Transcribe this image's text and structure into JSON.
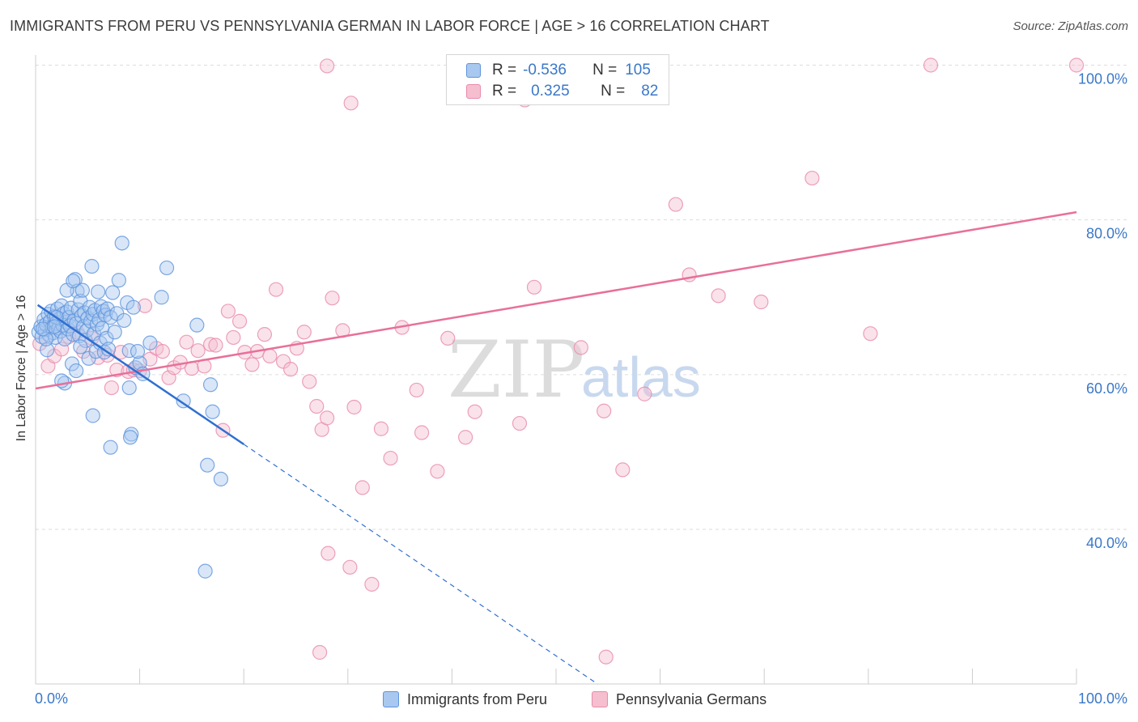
{
  "title": "IMMIGRANTS FROM PERU VS PENNSYLVANIA GERMAN IN LABOR FORCE | AGE > 16 CORRELATION CHART",
  "source": "Source: ZipAtlas.com",
  "watermark": {
    "zip": "ZIP",
    "atlas": "atlas"
  },
  "colors": {
    "blue_fill": "#a9c8ef",
    "blue_stroke": "#5e94dc",
    "blue_line": "#2f6fd1",
    "pink_fill": "#f5bfd0",
    "pink_stroke": "#e98aab",
    "pink_line": "#e8709a",
    "grid": "#dddddd",
    "axis_text": "#3a78c9"
  },
  "legend_top": {
    "rows": [
      {
        "r_label": "R =",
        "r_value": "-0.536",
        "n_label": "N =",
        "n_value": "105"
      },
      {
        "r_label": "R =",
        "r_value": "0.325",
        "n_label": "N =",
        "n_value": "82"
      }
    ]
  },
  "chart_data": {
    "type": "scatter",
    "title": "IMMIGRANTS FROM PERU VS PENNSYLVANIA GERMAN IN LABOR FORCE | AGE > 16 CORRELATION CHART",
    "xlabel": "",
    "ylabel": "In Labor Force | Age > 16",
    "xlim": [
      0,
      100
    ],
    "ylim": [
      20,
      102
    ],
    "x_tick_labels": [
      "0.0%",
      "100.0%"
    ],
    "y_ticks": [
      {
        "value": 40,
        "label": "40.0%"
      },
      {
        "value": 60,
        "label": "60.0%"
      },
      {
        "value": 80,
        "label": "80.0%"
      },
      {
        "value": 100,
        "label": "100.0%"
      }
    ],
    "grid": true,
    "legend_position": "bottom",
    "series": [
      {
        "name": "Immigrants from Peru",
        "r": -0.536,
        "n": 105,
        "trend": {
          "x0": 0.2,
          "y0": 69.0,
          "x1": 20,
          "y1": 51.0,
          "dashed_to_x": 54,
          "dashed_to_y": 20.0
        },
        "points": [
          [
            0.3,
            65.5
          ],
          [
            0.5,
            66.2
          ],
          [
            0.6,
            64.9
          ],
          [
            0.8,
            67.1
          ],
          [
            0.9,
            65.8
          ],
          [
            1.0,
            66.5
          ],
          [
            1.1,
            63.2
          ],
          [
            1.2,
            67.8
          ],
          [
            1.3,
            65.1
          ],
          [
            1.4,
            66.9
          ],
          [
            1.5,
            68.2
          ],
          [
            1.6,
            66.1
          ],
          [
            1.7,
            65.4
          ],
          [
            1.8,
            67.5
          ],
          [
            1.9,
            64.8
          ],
          [
            2.0,
            66.7
          ],
          [
            2.1,
            68.5
          ],
          [
            2.2,
            66.0
          ],
          [
            2.3,
            67.2
          ],
          [
            2.4,
            65.6
          ],
          [
            2.5,
            68.9
          ],
          [
            2.6,
            66.4
          ],
          [
            2.7,
            67.9
          ],
          [
            2.8,
            64.6
          ],
          [
            2.9,
            66.8
          ],
          [
            3.0,
            68.1
          ],
          [
            3.1,
            65.9
          ],
          [
            3.2,
            67.4
          ],
          [
            3.3,
            66.3
          ],
          [
            3.4,
            68.6
          ],
          [
            3.5,
            61.4
          ],
          [
            3.6,
            65.2
          ],
          [
            3.7,
            67.0
          ],
          [
            3.8,
            72.3
          ],
          [
            3.9,
            66.6
          ],
          [
            4.0,
            70.8
          ],
          [
            4.1,
            68.4
          ],
          [
            4.2,
            65.0
          ],
          [
            4.3,
            69.5
          ],
          [
            4.4,
            67.6
          ],
          [
            4.5,
            70.9
          ],
          [
            4.6,
            66.2
          ],
          [
            4.7,
            68.0
          ],
          [
            4.8,
            64.4
          ],
          [
            4.9,
            65.7
          ],
          [
            5.0,
            67.3
          ],
          [
            5.1,
            62.1
          ],
          [
            5.2,
            68.7
          ],
          [
            5.3,
            66.9
          ],
          [
            5.4,
            74.0
          ],
          [
            5.5,
            67.8
          ],
          [
            5.6,
            65.3
          ],
          [
            5.7,
            68.3
          ],
          [
            5.8,
            63.0
          ],
          [
            5.9,
            66.5
          ],
          [
            6.0,
            70.7
          ],
          [
            6.1,
            67.1
          ],
          [
            6.2,
            64.1
          ],
          [
            6.3,
            68.8
          ],
          [
            6.4,
            66.0
          ],
          [
            6.5,
            68.2
          ],
          [
            6.6,
            62.9
          ],
          [
            6.7,
            67.7
          ],
          [
            6.8,
            64.7
          ],
          [
            6.9,
            68.5
          ],
          [
            7.0,
            63.3
          ],
          [
            7.2,
            67.4
          ],
          [
            7.4,
            70.6
          ],
          [
            7.6,
            65.5
          ],
          [
            7.8,
            67.9
          ],
          [
            8.0,
            72.2
          ],
          [
            8.3,
            77.0
          ],
          [
            8.5,
            67.0
          ],
          [
            8.8,
            69.3
          ],
          [
            9.0,
            63.1
          ],
          [
            9.2,
            52.3
          ],
          [
            9.4,
            68.7
          ],
          [
            9.6,
            60.9
          ],
          [
            10.0,
            61.5
          ],
          [
            11.0,
            64.1
          ],
          [
            9.0,
            58.3
          ],
          [
            9.1,
            51.9
          ],
          [
            10.3,
            60.1
          ],
          [
            12.1,
            70.0
          ],
          [
            12.6,
            73.8
          ],
          [
            14.2,
            56.6
          ],
          [
            15.5,
            66.4
          ],
          [
            16.5,
            48.3
          ],
          [
            17.8,
            46.5
          ],
          [
            16.8,
            58.7
          ],
          [
            17.0,
            55.2
          ],
          [
            9.8,
            63.0
          ],
          [
            5.5,
            54.7
          ],
          [
            2.8,
            58.9
          ],
          [
            3.9,
            60.5
          ],
          [
            4.3,
            63.6
          ],
          [
            2.0,
            67.4
          ],
          [
            1.0,
            64.6
          ],
          [
            0.7,
            65.9
          ],
          [
            1.8,
            66.2
          ],
          [
            2.5,
            59.2
          ],
          [
            3.0,
            70.9
          ],
          [
            3.6,
            72.1
          ],
          [
            7.2,
            50.6
          ],
          [
            16.3,
            34.6
          ]
        ]
      },
      {
        "name": "Pennsylvania Germans",
        "r": 0.325,
        "n": 82,
        "trend": {
          "x0": 0,
          "y0": 58.2,
          "x1": 100,
          "y1": 81.0
        },
        "points": [
          [
            0.4,
            64.0
          ],
          [
            1.2,
            61.1
          ],
          [
            1.8,
            62.4
          ],
          [
            2.5,
            63.3
          ],
          [
            3.2,
            64.9
          ],
          [
            4.0,
            65.5
          ],
          [
            4.6,
            63.0
          ],
          [
            5.4,
            64.7
          ],
          [
            6.0,
            62.2
          ],
          [
            6.9,
            62.5
          ],
          [
            7.3,
            58.3
          ],
          [
            7.8,
            60.6
          ],
          [
            8.2,
            62.9
          ],
          [
            8.9,
            60.4
          ],
          [
            9.4,
            60.6
          ],
          [
            10.0,
            60.5
          ],
          [
            10.5,
            68.9
          ],
          [
            11.0,
            62.0
          ],
          [
            11.6,
            63.4
          ],
          [
            12.2,
            63.0
          ],
          [
            12.8,
            59.6
          ],
          [
            13.3,
            60.9
          ],
          [
            13.9,
            61.6
          ],
          [
            14.5,
            64.2
          ],
          [
            15.0,
            60.8
          ],
          [
            15.6,
            63.1
          ],
          [
            16.2,
            61.1
          ],
          [
            16.8,
            63.9
          ],
          [
            17.3,
            63.8
          ],
          [
            18.0,
            52.8
          ],
          [
            18.5,
            68.2
          ],
          [
            19.0,
            64.8
          ],
          [
            19.6,
            66.9
          ],
          [
            20.1,
            62.9
          ],
          [
            20.8,
            61.3
          ],
          [
            21.3,
            63.0
          ],
          [
            22.0,
            65.2
          ],
          [
            22.5,
            62.4
          ],
          [
            23.1,
            71.0
          ],
          [
            23.8,
            61.7
          ],
          [
            24.5,
            60.7
          ],
          [
            25.1,
            63.4
          ],
          [
            25.8,
            65.5
          ],
          [
            26.3,
            59.1
          ],
          [
            27.0,
            55.9
          ],
          [
            27.5,
            52.9
          ],
          [
            28.0,
            54.4
          ],
          [
            28.5,
            69.9
          ],
          [
            29.5,
            65.7
          ],
          [
            30.6,
            55.8
          ],
          [
            31.4,
            45.4
          ],
          [
            32.3,
            32.9
          ],
          [
            33.2,
            53.0
          ],
          [
            34.1,
            49.2
          ],
          [
            35.2,
            66.1
          ],
          [
            36.6,
            58.0
          ],
          [
            37.1,
            52.5
          ],
          [
            38.6,
            47.5
          ],
          [
            39.6,
            64.7
          ],
          [
            41.3,
            51.9
          ],
          [
            42.2,
            55.2
          ],
          [
            46.5,
            53.7
          ],
          [
            47.9,
            71.3
          ],
          [
            52.4,
            63.5
          ],
          [
            54.6,
            55.3
          ],
          [
            56.4,
            47.7
          ],
          [
            58.5,
            57.5
          ],
          [
            61.5,
            82.0
          ],
          [
            62.8,
            72.9
          ],
          [
            65.6,
            70.2
          ],
          [
            69.7,
            69.4
          ],
          [
            74.6,
            85.4
          ],
          [
            80.2,
            65.3
          ],
          [
            27.3,
            24.1
          ],
          [
            28.1,
            36.9
          ],
          [
            30.2,
            35.1
          ],
          [
            28.0,
            99.9
          ],
          [
            30.3,
            95.1
          ],
          [
            47.0,
            95.5
          ],
          [
            86.0,
            100.0
          ],
          [
            100.0,
            100.0
          ],
          [
            54.8,
            23.5
          ]
        ]
      }
    ]
  }
}
